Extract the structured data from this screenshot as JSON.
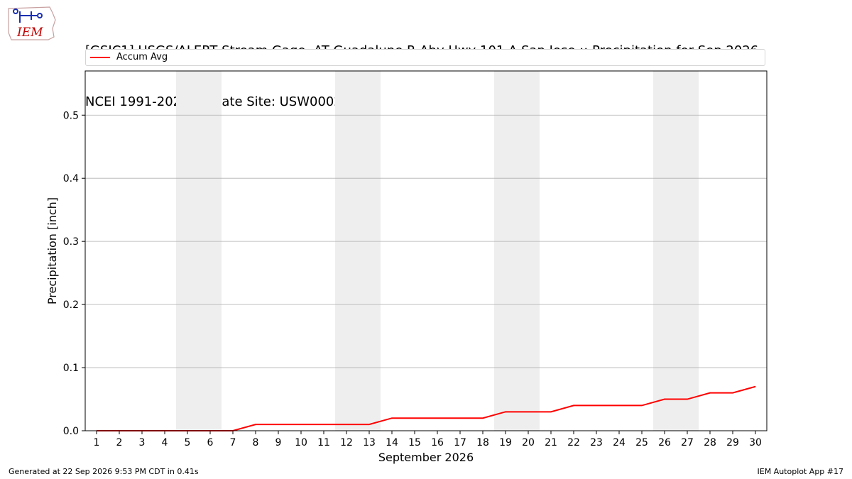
{
  "title_line1": "[GSJC1] USGS/ALERT Stream Gage  AT Guadalupe R Abv Hwy 101 A San Jose :: Precipitation for Sep 2026",
  "title_line2": "NCEI 1991-2020 Climate Site: USW00023293",
  "logo_text": "IEM",
  "footer_left": "Generated at 22 Sep 2026 9:53 PM CDT in 0.41s",
  "footer_right": "IEM Autoplot App #17",
  "colors": {
    "series": "#ff0000",
    "weekend_band": "#eeeeee",
    "grid": "#b0b0b0"
  },
  "chart_data": {
    "type": "line",
    "xlabel": "September 2026",
    "ylabel": "Precipitation [inch]",
    "x": [
      1,
      2,
      3,
      4,
      5,
      6,
      7,
      8,
      9,
      10,
      11,
      12,
      13,
      14,
      15,
      16,
      17,
      18,
      19,
      20,
      21,
      22,
      23,
      24,
      25,
      26,
      27,
      28,
      29,
      30
    ],
    "series": [
      {
        "name": "Accum Avg",
        "color": "#ff0000",
        "values": [
          0,
          0,
          0,
          0,
          0,
          0,
          0,
          0.01,
          0.01,
          0.01,
          0.01,
          0.01,
          0.01,
          0.02,
          0.02,
          0.02,
          0.02,
          0.02,
          0.03,
          0.03,
          0.03,
          0.04,
          0.04,
          0.04,
          0.04,
          0.05,
          0.05,
          0.06,
          0.06,
          0.07
        ]
      }
    ],
    "xlim": [
      0.5,
      30.5
    ],
    "ylim": [
      0,
      0.57
    ],
    "yticks": [
      "0.0",
      "0.1",
      "0.2",
      "0.3",
      "0.4",
      "0.5"
    ],
    "xticks": [
      "1",
      "2",
      "3",
      "4",
      "5",
      "6",
      "7",
      "8",
      "9",
      "10",
      "11",
      "12",
      "13",
      "14",
      "15",
      "16",
      "17",
      "18",
      "19",
      "20",
      "21",
      "22",
      "23",
      "24",
      "25",
      "26",
      "27",
      "28",
      "29",
      "30"
    ],
    "weekend_bands": [
      [
        5,
        6
      ],
      [
        12,
        13
      ],
      [
        19,
        20
      ],
      [
        26,
        27
      ]
    ],
    "grid": "horizontal",
    "legend": "top"
  }
}
